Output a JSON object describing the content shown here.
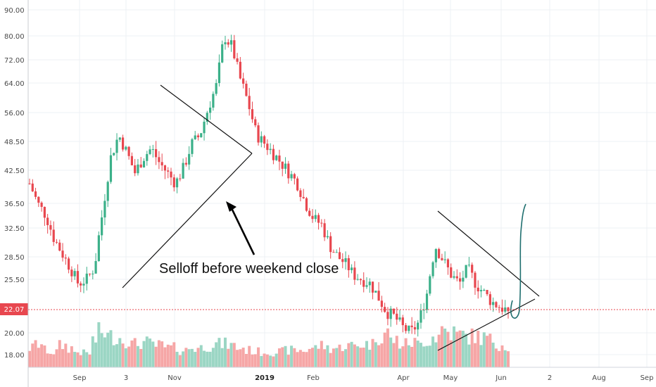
{
  "chart_data": {
    "type": "candlestick",
    "y_scale": "log",
    "y_ticks": [
      "90.00",
      "80.00",
      "72.00",
      "64.00",
      "56.00",
      "48.50",
      "42.50",
      "36.50",
      "32.50",
      "28.50",
      "25.50",
      "20.00",
      "18.00"
    ],
    "x_ticks": [
      {
        "label": "Sep",
        "bold": false
      },
      {
        "label": "3",
        "bold": false
      },
      {
        "label": "Nov",
        "bold": false
      },
      {
        "label": "2019",
        "bold": true
      },
      {
        "label": "Feb",
        "bold": false
      },
      {
        "label": "Apr",
        "bold": false
      },
      {
        "label": "May",
        "bold": false
      },
      {
        "label": "Jun",
        "bold": false
      },
      {
        "label": "2",
        "bold": false
      },
      {
        "label": "Aug",
        "bold": false
      },
      {
        "label": "Sep",
        "bold": false
      }
    ],
    "current_price": {
      "label": "22.07",
      "value": 22.07,
      "color": "#e8474f"
    },
    "colors": {
      "up": "#3bb089",
      "down": "#e8474f",
      "vol_up": "#9bd6c4",
      "vol_down": "#f6a6a6",
      "drawing": "#1f6f6f"
    },
    "close_path": [
      40,
      36.5,
      34.5,
      31,
      29,
      27,
      25,
      25.5,
      27,
      35,
      45,
      50,
      46,
      42,
      45,
      47,
      44,
      42,
      40,
      43,
      48,
      50,
      57,
      63,
      80,
      76,
      65,
      58,
      50,
      48,
      46,
      44,
      42,
      40,
      36.5,
      34,
      33,
      30,
      28.5,
      27.5,
      26,
      25.5,
      25,
      23.5,
      22,
      21.5,
      20.5,
      20,
      21,
      24,
      30,
      28,
      26,
      25,
      27,
      25,
      24,
      23,
      22.5,
      22.07
    ],
    "volume_profile": [
      0.25,
      0.3,
      0.22,
      0.2,
      0.28,
      0.25,
      0.2,
      0.18,
      0.35,
      0.45,
      0.4,
      0.38,
      0.35,
      0.3,
      0.32,
      0.3,
      0.28,
      0.25,
      0.25,
      0.22,
      0.25,
      0.25,
      0.28,
      0.3,
      0.3,
      0.28,
      0.25,
      0.22,
      0.2,
      0.2,
      0.2,
      0.2,
      0.22,
      0.22,
      0.22,
      0.25,
      0.28,
      0.25,
      0.25,
      0.28,
      0.28,
      0.3,
      0.3,
      0.4,
      0.45,
      0.35,
      0.3,
      0.32,
      0.3,
      0.35,
      0.4,
      0.5,
      0.45,
      0.42,
      0.4,
      0.4,
      0.38,
      0.35,
      0.3,
      0.28
    ],
    "annotations": [
      {
        "text": "Selloff before weekend close"
      }
    ]
  }
}
